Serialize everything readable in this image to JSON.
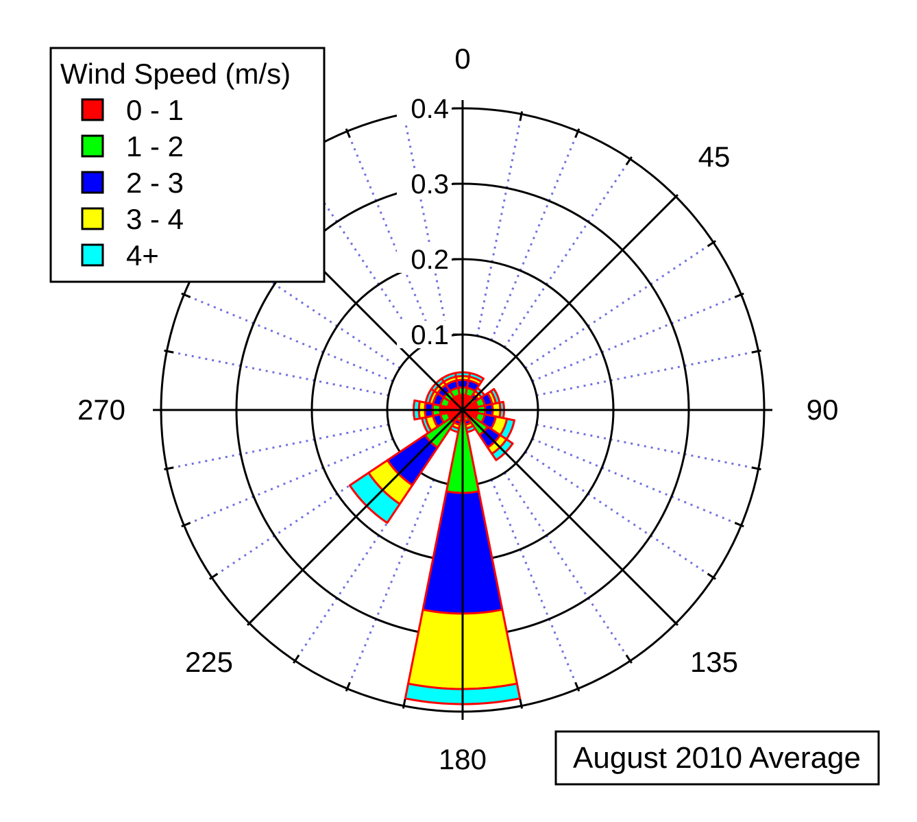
{
  "chart_data": {
    "type": "wind-rose",
    "legend": {
      "title": "Wind Speed (m/s)",
      "placement": "top-left",
      "items": [
        {
          "label": "0 - 1",
          "color": "#ff0000"
        },
        {
          "label": "1 - 2",
          "color": "#00ff00"
        },
        {
          "label": "2 - 3",
          "color": "#0000ff"
        },
        {
          "label": "3 - 4",
          "color": "#ffff00"
        },
        {
          "label": "4+",
          "color": "#00ffff"
        }
      ]
    },
    "outline_color": "#ff0000",
    "radial_axis": {
      "min": 0,
      "max": 0.4,
      "ticks": [
        "0.1",
        "0.2",
        "0.3",
        "0.4"
      ],
      "tick_values": [
        0.1,
        0.2,
        0.3,
        0.4
      ]
    },
    "angular_labels": [
      {
        "label": "0",
        "deg": 0
      },
      {
        "label": "45",
        "deg": 45
      },
      {
        "label": "90",
        "deg": 90
      },
      {
        "label": "135",
        "deg": 135
      },
      {
        "label": "180",
        "deg": 180
      },
      {
        "label": "225",
        "deg": 225
      },
      {
        "label": "270",
        "deg": 270
      }
    ],
    "major_spokes_deg": [
      0,
      45,
      90,
      135,
      180,
      225,
      270,
      315
    ],
    "minor_spokes_step_deg": 11.25,
    "minor_spoke_color": "#7070e0",
    "sector_width_deg": 22.5,
    "sectors": [
      {
        "direction_deg": 0,
        "cumulative": [
          0.02,
          0.03,
          0.04,
          0.045,
          0.05
        ]
      },
      {
        "direction_deg": 22.5,
        "cumulative": [
          0.02,
          0.03,
          0.04,
          0.045,
          0.05
        ]
      },
      {
        "direction_deg": 45,
        "cumulative": [
          0.01,
          0.02,
          0.025,
          0.03,
          0.035
        ]
      },
      {
        "direction_deg": 67.5,
        "cumulative": [
          0.02,
          0.03,
          0.04,
          0.045,
          0.05
        ]
      },
      {
        "direction_deg": 90,
        "cumulative": [
          0.02,
          0.03,
          0.04,
          0.05,
          0.055
        ]
      },
      {
        "direction_deg": 112.5,
        "cumulative": [
          0.02,
          0.03,
          0.045,
          0.06,
          0.07
        ]
      },
      {
        "direction_deg": 135,
        "cumulative": [
          0.015,
          0.04,
          0.06,
          0.07,
          0.08
        ]
      },
      {
        "direction_deg": 157.5,
        "cumulative": [
          0.01,
          0.015,
          0.02,
          0.025,
          0.03
        ]
      },
      {
        "direction_deg": 180,
        "cumulative": [
          0.01,
          0.11,
          0.27,
          0.37,
          0.39
        ]
      },
      {
        "direction_deg": 202.5,
        "cumulative": [
          0.01,
          0.015,
          0.02,
          0.025,
          0.03
        ]
      },
      {
        "direction_deg": 225,
        "cumulative": [
          0.02,
          0.06,
          0.12,
          0.15,
          0.18
        ]
      },
      {
        "direction_deg": 247.5,
        "cumulative": [
          0.02,
          0.03,
          0.04,
          0.05,
          0.055
        ]
      },
      {
        "direction_deg": 270,
        "cumulative": [
          0.03,
          0.04,
          0.05,
          0.058,
          0.065
        ]
      },
      {
        "direction_deg": 292.5,
        "cumulative": [
          0.02,
          0.03,
          0.04,
          0.045,
          0.05
        ]
      },
      {
        "direction_deg": 315,
        "cumulative": [
          0.02,
          0.03,
          0.04,
          0.045,
          0.05
        ]
      },
      {
        "direction_deg": 337.5,
        "cumulative": [
          0.02,
          0.03,
          0.04,
          0.045,
          0.05
        ]
      }
    ],
    "annotation": "August 2010 Average"
  }
}
